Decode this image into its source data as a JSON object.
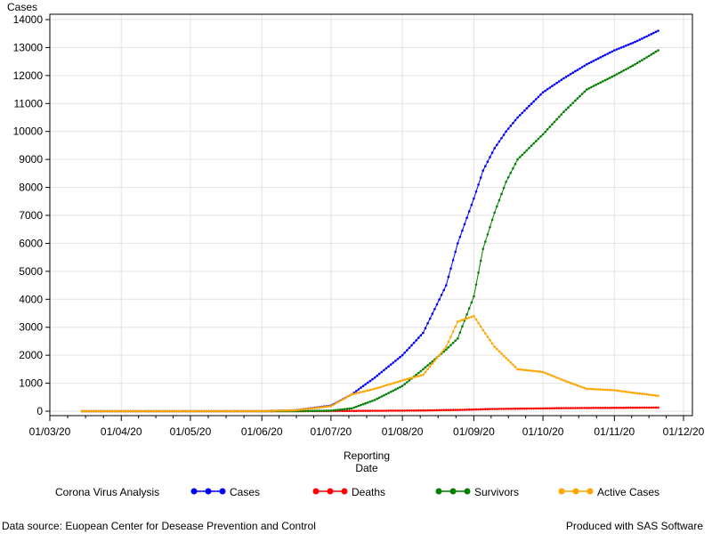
{
  "chart_data": {
    "type": "line",
    "ylabel": "Cases",
    "xlabel_line1": "Reporting",
    "xlabel_line2": "Date",
    "ylim": [
      0,
      14000
    ],
    "yticks": [
      0,
      1000,
      2000,
      3000,
      4000,
      5000,
      6000,
      7000,
      8000,
      9000,
      10000,
      11000,
      12000,
      13000,
      14000
    ],
    "xticks": [
      "01/03/20",
      "01/04/20",
      "01/05/20",
      "01/06/20",
      "01/07/20",
      "01/08/20",
      "01/09/20",
      "01/10/20",
      "01/11/20",
      "01/12/20"
    ],
    "grid": true,
    "legend_title": "Corona Virus Analysis",
    "legend_position": "bottom",
    "x": [
      "2020-03-15",
      "2020-04-01",
      "2020-05-01",
      "2020-06-01",
      "2020-06-15",
      "2020-07-01",
      "2020-07-10",
      "2020-07-20",
      "2020-08-01",
      "2020-08-10",
      "2020-08-20",
      "2020-08-25",
      "2020-09-01",
      "2020-09-05",
      "2020-09-10",
      "2020-09-15",
      "2020-09-20",
      "2020-10-01",
      "2020-10-10",
      "2020-10-20",
      "2020-11-01",
      "2020-11-10",
      "2020-11-20"
    ],
    "series": [
      {
        "name": "Cases",
        "color": "#0000ff",
        "values": [
          0,
          0,
          0,
          5,
          30,
          200,
          600,
          1200,
          2000,
          2800,
          4500,
          6000,
          7600,
          8600,
          9400,
          10000,
          10500,
          11400,
          11900,
          12400,
          12900,
          13200,
          13600
        ]
      },
      {
        "name": "Deaths",
        "color": "#ff0000",
        "values": [
          0,
          0,
          0,
          0,
          0,
          5,
          10,
          15,
          20,
          25,
          40,
          45,
          60,
          70,
          80,
          85,
          90,
          100,
          110,
          115,
          120,
          125,
          130
        ]
      },
      {
        "name": "Survivors",
        "color": "#008000",
        "values": [
          0,
          0,
          0,
          0,
          0,
          20,
          100,
          400,
          900,
          1500,
          2200,
          2600,
          4100,
          5800,
          7100,
          8200,
          9000,
          9900,
          10700,
          11500,
          12000,
          12400,
          12900
        ]
      },
      {
        "name": "Active Cases",
        "color": "#ffa500",
        "values": [
          0,
          0,
          0,
          5,
          30,
          180,
          600,
          800,
          1100,
          1300,
          2300,
          3200,
          3400,
          2900,
          2300,
          1900,
          1500,
          1400,
          1100,
          800,
          750,
          650,
          550
        ]
      }
    ]
  },
  "footer": {
    "left": "Data source: Euopean Center for Desease Prevention and Control",
    "right": "Produced with SAS Software"
  }
}
